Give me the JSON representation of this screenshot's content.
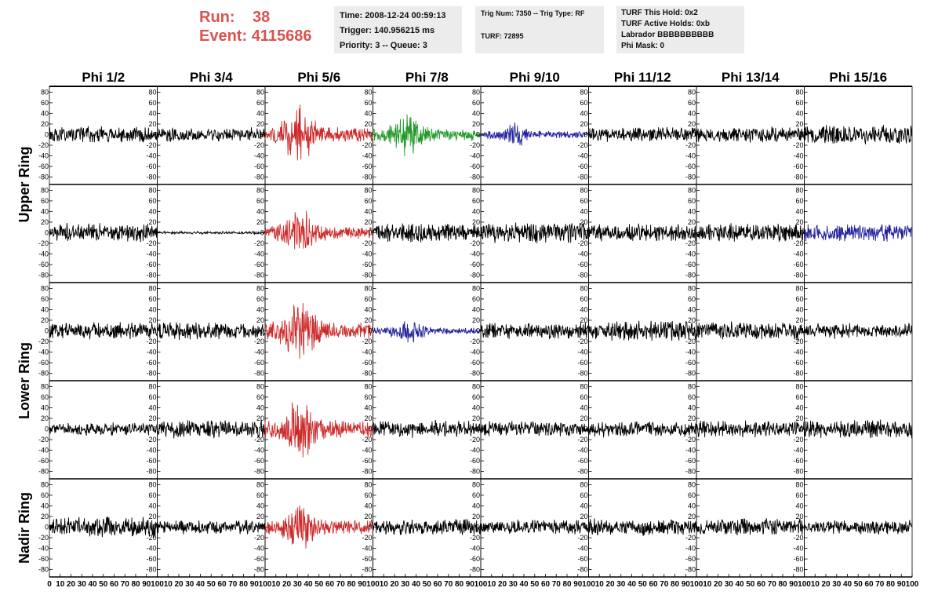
{
  "header": {
    "run_label": "Run:",
    "run_value": "38",
    "event_label": "Event:",
    "event_value": "4115686",
    "time": "Time: 2008-12-24 00:59:13",
    "trigger": "Trigger: 140.956215 ms",
    "priority": "Priority: 3 -- Queue: 3",
    "trig_num": "Trig Num: 7350 -- Trig Type: RF",
    "turf": "TURF: 72895",
    "turf_hold": "TURF This Hold: 0x2",
    "turf_active": "TURF Active Holds: 0xb",
    "labrador": "Labrador BBBBBBBBBB",
    "phi_mask": "Phi Mask: 0"
  },
  "columns": [
    "Phi 1/2",
    "Phi 3/4",
    "Phi 5/6",
    "Phi 7/8",
    "Phi 9/10",
    "Phi 11/12",
    "Phi 13/14",
    "Phi 15/16"
  ],
  "ring_labels": [
    {
      "text": "Upper Ring",
      "rows": [
        0,
        1
      ]
    },
    {
      "text": "Lower Ring",
      "rows": [
        2,
        3
      ]
    },
    {
      "text": "Nadir Ring",
      "rows": [
        4,
        4
      ]
    }
  ],
  "colors": {
    "normal": "#000000",
    "red": "#cc2a2a",
    "green": "#22992a",
    "blue": "#22229a"
  },
  "chart_data": {
    "type": "line",
    "description": "ANITA event display: 5 rows x 8 phi-sector waveform panels, voltage vs time-bin",
    "x_ticks": [
      0,
      10,
      20,
      30,
      40,
      50,
      60,
      70,
      80,
      90,
      100
    ],
    "xlim": [
      0,
      100
    ],
    "y_ticks": [
      80,
      60,
      40,
      20,
      0,
      -20,
      -40,
      -60,
      -80
    ],
    "ylim": [
      -85,
      85
    ],
    "panels": [
      [
        {
          "color": "black",
          "amp": 11
        },
        {
          "color": "black",
          "amp": 10
        },
        {
          "color": "red",
          "amp": 32,
          "pulse": true
        },
        {
          "color": "green",
          "amp": 24,
          "pulse": true
        },
        {
          "color": "blue",
          "amp": 14,
          "pulse": true
        },
        {
          "color": "black",
          "amp": 10
        },
        {
          "color": "black",
          "amp": 11
        },
        {
          "color": "black",
          "amp": 14
        }
      ],
      [
        {
          "color": "black",
          "amp": 13
        },
        {
          "color": "black",
          "amp": 2
        },
        {
          "color": "red",
          "amp": 26,
          "pulse": true
        },
        {
          "color": "black",
          "amp": 14
        },
        {
          "color": "black",
          "amp": 14
        },
        {
          "color": "black",
          "amp": 13
        },
        {
          "color": "black",
          "amp": 13
        },
        {
          "color": "blue",
          "amp": 12
        }
      ],
      [
        {
          "color": "black",
          "amp": 12
        },
        {
          "color": "black",
          "amp": 13
        },
        {
          "color": "red",
          "amp": 35,
          "pulse": true
        },
        {
          "color": "blue",
          "amp": 14,
          "pulse": true
        },
        {
          "color": "black",
          "amp": 12
        },
        {
          "color": "black",
          "amp": 14
        },
        {
          "color": "black",
          "amp": 13
        },
        {
          "color": "black",
          "amp": 11
        }
      ],
      [
        {
          "color": "black",
          "amp": 9
        },
        {
          "color": "black",
          "amp": 13
        },
        {
          "color": "red",
          "amp": 36,
          "pulse": true
        },
        {
          "color": "black",
          "amp": 12
        },
        {
          "color": "black",
          "amp": 11
        },
        {
          "color": "black",
          "amp": 11
        },
        {
          "color": "black",
          "amp": 12
        },
        {
          "color": "black",
          "amp": 13
        }
      ],
      [
        {
          "color": "black",
          "amp": 14
        },
        {
          "color": "black",
          "amp": 10
        },
        {
          "color": "red",
          "amp": 28,
          "pulse": true
        },
        {
          "color": "black",
          "amp": 11
        },
        {
          "color": "black",
          "amp": 10
        },
        {
          "color": "black",
          "amp": 12
        },
        {
          "color": "black",
          "amp": 12
        },
        {
          "color": "black",
          "amp": 10
        }
      ]
    ]
  }
}
